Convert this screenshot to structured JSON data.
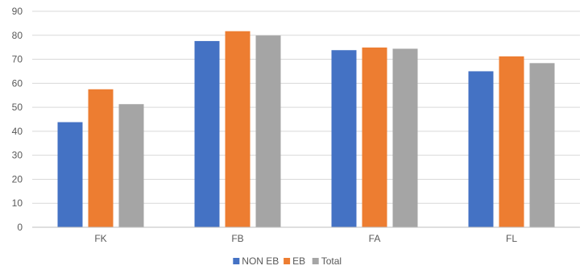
{
  "chart_data": {
    "type": "bar",
    "title": "",
    "xlabel": "",
    "ylabel": "",
    "categories": [
      "FK",
      "FB",
      "FA",
      "FL"
    ],
    "series": [
      {
        "name": "NON EB",
        "color": "#4472C4",
        "values": [
          43.8,
          77.6,
          73.8,
          65.0
        ]
      },
      {
        "name": "EB",
        "color": "#ED7D31",
        "values": [
          57.5,
          81.7,
          74.9,
          71.2
        ]
      },
      {
        "name": "Total",
        "color": "#A5A5A5",
        "values": [
          51.3,
          79.9,
          74.4,
          68.4
        ]
      }
    ],
    "ylim": [
      0,
      90
    ],
    "yticks": [
      "0",
      "10",
      "20",
      "30",
      "40",
      "50",
      "60",
      "70",
      "80",
      "90"
    ],
    "grid": true,
    "legend_position": "bottom"
  }
}
